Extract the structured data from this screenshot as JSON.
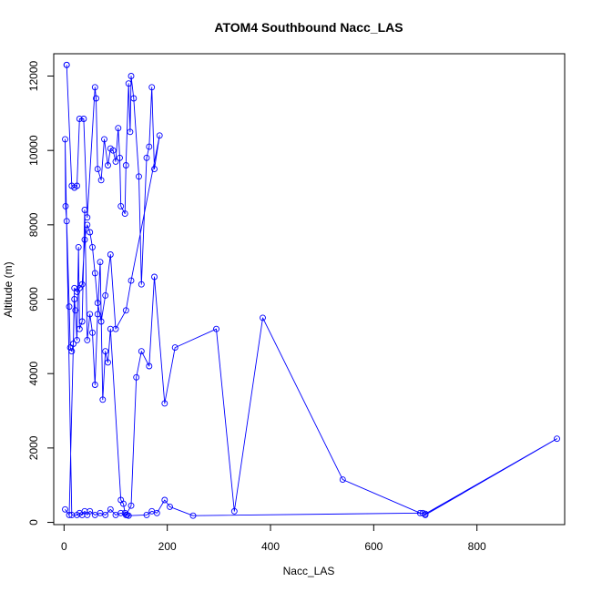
{
  "chart_data": {
    "type": "line",
    "title": "ATOM4 Southbound Nacc_LAS",
    "xlabel": "Nacc_LAS",
    "ylabel": "Altitude (m)",
    "xlim": [
      -20,
      970
    ],
    "ylim": [
      -60,
      12600
    ],
    "x_ticks": [
      0,
      200,
      400,
      600,
      800
    ],
    "y_ticks": [
      0,
      2000,
      4000,
      6000,
      8000,
      10000,
      12000
    ],
    "grid": false,
    "series": [
      {
        "name": "",
        "color": "#0000ff",
        "marker": "open-circle",
        "x": [
          5,
          5,
          15,
          20,
          25,
          30,
          38,
          45,
          60,
          62,
          65,
          72,
          78,
          85,
          90,
          95,
          100,
          105,
          108,
          110,
          118,
          120,
          125,
          128,
          130,
          135,
          145,
          150,
          160,
          165,
          170,
          175,
          185,
          130,
          120,
          100,
          90,
          80,
          72,
          65,
          60,
          55,
          50,
          45,
          40,
          35,
          30,
          25,
          20,
          18,
          15,
          12,
          10,
          5,
          3,
          2,
          15,
          25,
          30,
          35,
          40,
          45,
          50,
          60,
          70,
          80,
          90,
          100,
          110,
          120,
          130,
          140,
          150,
          165,
          175,
          195,
          215,
          295,
          330,
          385,
          540,
          690,
          700,
          955,
          700,
          695,
          250,
          205,
          195,
          180,
          170,
          160,
          125,
          122,
          118,
          115,
          110,
          90,
          85,
          80,
          75,
          70,
          65,
          60,
          55,
          50,
          45,
          40,
          35,
          30,
          28,
          25,
          22,
          20,
          10,
          2
        ],
        "y": [
          12300,
          12300,
          9050,
          9000,
          9050,
          10850,
          10850,
          8200,
          11700,
          11400,
          9500,
          9200,
          10300,
          9600,
          10050,
          10000,
          9700,
          10600,
          9800,
          8500,
          8300,
          9600,
          11800,
          10500,
          12000,
          11400,
          9300,
          6400,
          9800,
          10100,
          11700,
          9500,
          10400,
          6500,
          5700,
          5200,
          7200,
          6100,
          5400,
          5900,
          6700,
          7400,
          7800,
          8000,
          7600,
          6400,
          6300,
          6200,
          6300,
          4800,
          4600,
          4700,
          5800,
          8100,
          8500,
          10300,
          200,
          200,
          250,
          200,
          300,
          200,
          300,
          200,
          250,
          200,
          350,
          200,
          250,
          200,
          450,
          3900,
          4600,
          4200,
          6600,
          3200,
          4700,
          5200,
          300,
          5500,
          1150,
          250,
          230,
          2250,
          200,
          250,
          180,
          420,
          600,
          250,
          300,
          200,
          180,
          200,
          250,
          500,
          600,
          5200,
          4300,
          4600,
          3300,
          7000,
          5600,
          3700,
          5100,
          5600,
          4900,
          8400,
          5400,
          5200,
          7400,
          4900,
          5700,
          6000,
          200,
          350
        ]
      }
    ]
  }
}
